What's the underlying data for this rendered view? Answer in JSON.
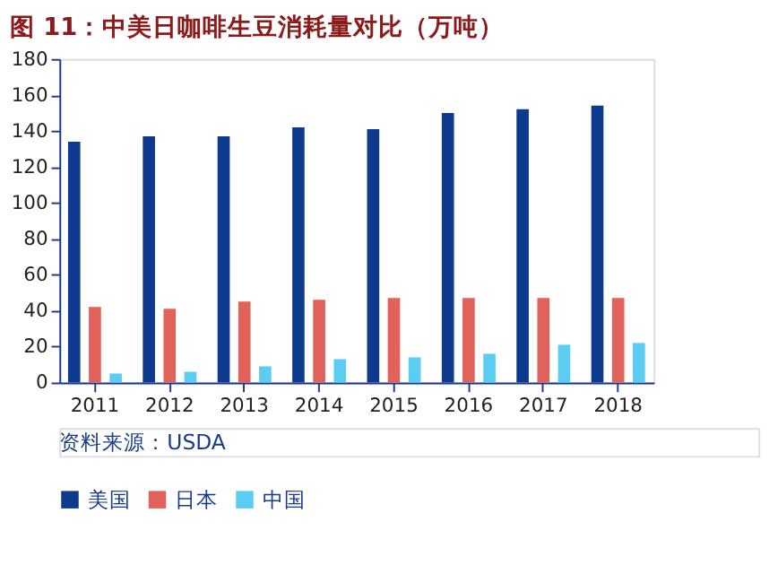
{
  "chart_data": {
    "type": "bar",
    "title": "图 11：中美日咖啡生豆消耗量对比（万吨）",
    "categories": [
      "2011",
      "2012",
      "2013",
      "2014",
      "2015",
      "2016",
      "2017",
      "2018"
    ],
    "series": [
      {
        "name": "美国",
        "color": "#0d3a8c",
        "values": [
          134,
          137,
          137,
          142,
          141,
          150,
          152,
          154
        ]
      },
      {
        "name": "日本",
        "color": "#e0625a",
        "values": [
          42,
          41,
          45,
          46,
          47,
          47,
          47,
          47
        ]
      },
      {
        "name": "中国",
        "color": "#5bcdf2",
        "values": [
          5,
          6,
          9,
          13,
          14,
          16,
          21,
          22
        ]
      }
    ],
    "ylim": [
      0,
      180
    ],
    "yticks": [
      0,
      20,
      40,
      60,
      80,
      100,
      120,
      140,
      160,
      180
    ],
    "grid": false,
    "legend": "bottom",
    "annotations": [
      "资料来源：USDA"
    ]
  }
}
